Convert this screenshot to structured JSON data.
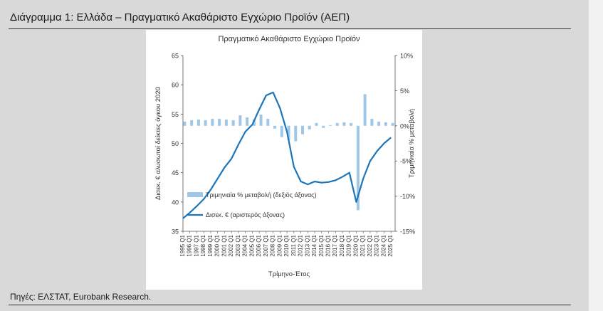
{
  "figure": {
    "caption": "Διάγραμμα 1: Ελλάδα – Πραγματικό Ακαθάριστο Εγχώριο Προϊόν (ΑΕΠ)",
    "source": "Πηγές: ΕΛΣΤΑΤ, Eurobank Research."
  },
  "colors": {
    "line": "#1b75bb",
    "bars": "#9fc7e8",
    "axis": "#555555"
  },
  "chart_data": {
    "type": "line",
    "title": "Πραγματικό Ακαθάριστο Εγχώριο Προϊόν",
    "xlabel": "Τρίμηνο-Έτος",
    "ylabel_left": "Δισεκ. € αλυσωτοί δείκτες όγκου 2020",
    "ylabel_right": "Τριμηνιαία % μεταβολή",
    "ylim_left": [
      35,
      65
    ],
    "yticks_left": [
      "35",
      "40",
      "45",
      "50",
      "55",
      "60",
      "65"
    ],
    "ylim_right": [
      -15,
      10
    ],
    "yticks_right": [
      "-15%",
      "-10%",
      "-5%",
      "0%",
      "5%",
      "10%"
    ],
    "x_tick_labels": [
      "1995 Q1",
      "1996 Q1",
      "1997 Q1",
      "1998 Q1",
      "1999 Q1",
      "2000 Q1",
      "2001 Q1",
      "2002 Q1",
      "2003 Q1",
      "2004 Q1",
      "2005 Q1",
      "2006 Q1",
      "2007 Q1",
      "2008 Q1",
      "2009 Q1",
      "2010 Q1",
      "2011 Q1",
      "2012 Q1",
      "2013 Q1",
      "2014 Q1",
      "2015 Q1",
      "2016 Q1",
      "2017 Q1",
      "2018 Q1",
      "2019 Q1",
      "2020 Q1",
      "2021 Q1",
      "2022 Q1",
      "2023 Q1",
      "2024 Q1",
      "2025 Q1"
    ],
    "legend": {
      "placement": "bottom-left",
      "bars_label": "Τριμηνιαία % μεταβολή (δεξιός άξονας)",
      "line_label": "Δισεκ. € (αριστερός άξονας)"
    },
    "grid": false,
    "series": [
      {
        "name": "Δισεκ. € (αριστερός άξονας)",
        "axis": "left",
        "kind": "line",
        "years": [
          1995,
          1996,
          1997,
          1998,
          1999,
          2000,
          2001,
          2002,
          2003,
          2004,
          2005,
          2006,
          2007,
          2008,
          2009,
          2010,
          2011,
          2012,
          2013,
          2014,
          2015,
          2016,
          2017,
          2018,
          2019,
          2020,
          2021,
          2022,
          2023,
          2024,
          2025
        ],
        "values": [
          37.2,
          38.2,
          39.3,
          40.5,
          42.1,
          44.0,
          45.9,
          47.4,
          49.8,
          52.0,
          53.2,
          55.8,
          58.2,
          58.7,
          56.0,
          52.0,
          46.0,
          43.5,
          43.0,
          43.5,
          43.3,
          43.4,
          43.7,
          44.3,
          45.0,
          40.0,
          44.0,
          47.0,
          48.7,
          50.0,
          51.0
        ]
      },
      {
        "name": "Τριμηνιαία % μεταβολή (δεξιός άξονας)",
        "axis": "right",
        "kind": "bar",
        "years": [
          1995,
          1996,
          1997,
          1998,
          1999,
          2000,
          2001,
          2002,
          2003,
          2004,
          2005,
          2006,
          2007,
          2008,
          2009,
          2010,
          2011,
          2012,
          2013,
          2014,
          2015,
          2016,
          2017,
          2018,
          2019,
          2020,
          2021,
          2022,
          2023,
          2024,
          2025
        ],
        "values": [
          0.6,
          0.8,
          0.9,
          0.8,
          1.0,
          1.0,
          0.9,
          0.8,
          1.5,
          1.2,
          0.9,
          1.6,
          1.0,
          -0.4,
          -1.6,
          -2.0,
          -2.2,
          -1.2,
          -0.5,
          0.4,
          -0.3,
          0.1,
          0.4,
          0.5,
          0.4,
          -12.0,
          4.5,
          1.0,
          0.6,
          0.5,
          0.4
        ]
      }
    ]
  }
}
